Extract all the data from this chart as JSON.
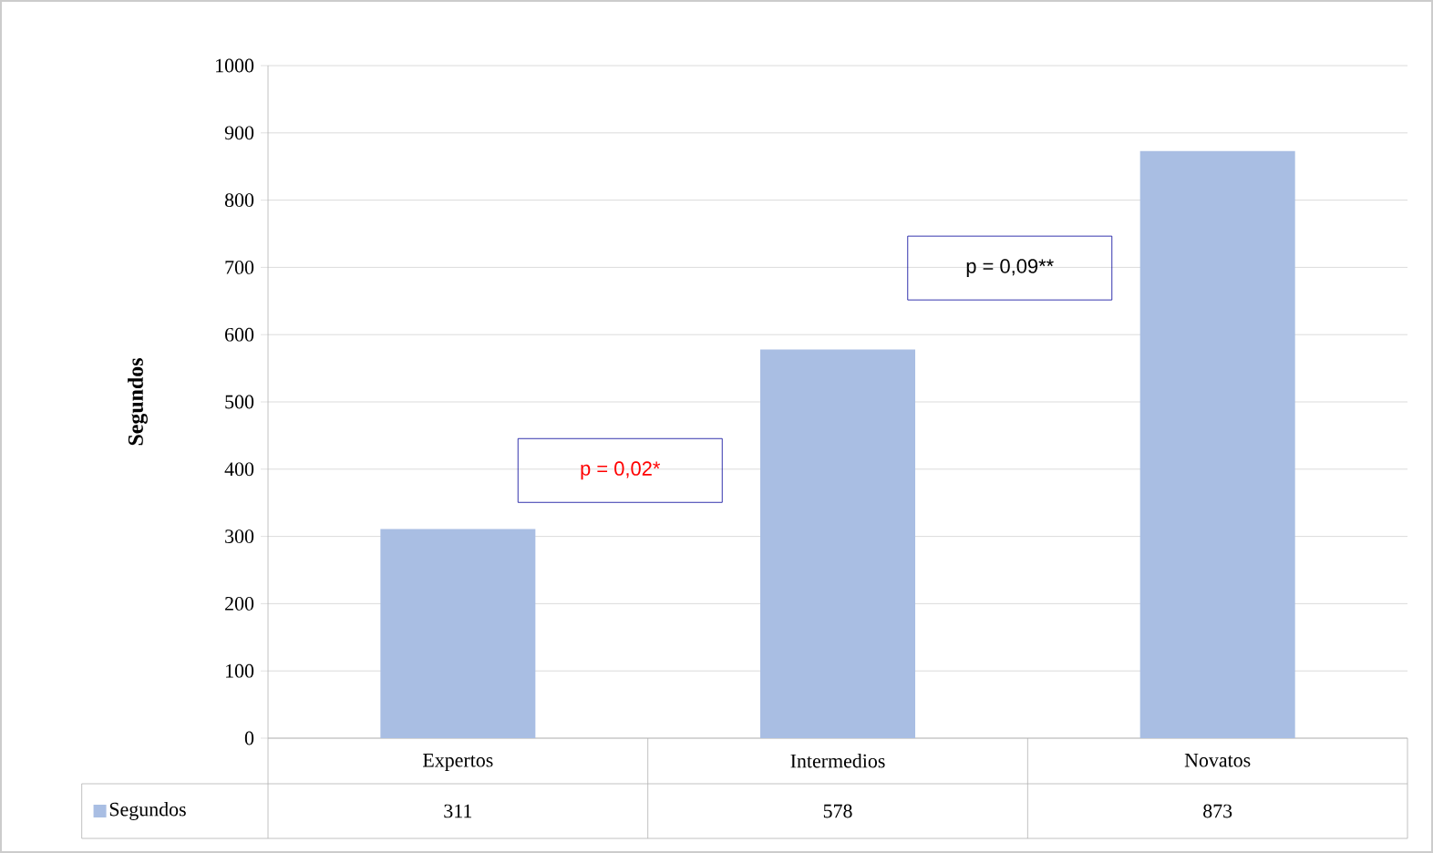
{
  "chart_data": {
    "type": "bar",
    "categories": [
      "Expertos",
      "Intermedios",
      "Novatos"
    ],
    "series": [
      {
        "name": "Segundos",
        "color": "#a9bee3",
        "values": [
          311,
          578,
          873
        ]
      }
    ],
    "ylabel": "Segundos",
    "ylim": [
      0,
      1000
    ],
    "yticks": [
      0,
      100,
      200,
      300,
      400,
      500,
      600,
      700,
      800,
      900,
      1000
    ],
    "grid": "y",
    "legend": "bottom",
    "data_labels": true,
    "annotations": [
      "p = 0,02*",
      "p = 0,09**"
    ]
  }
}
